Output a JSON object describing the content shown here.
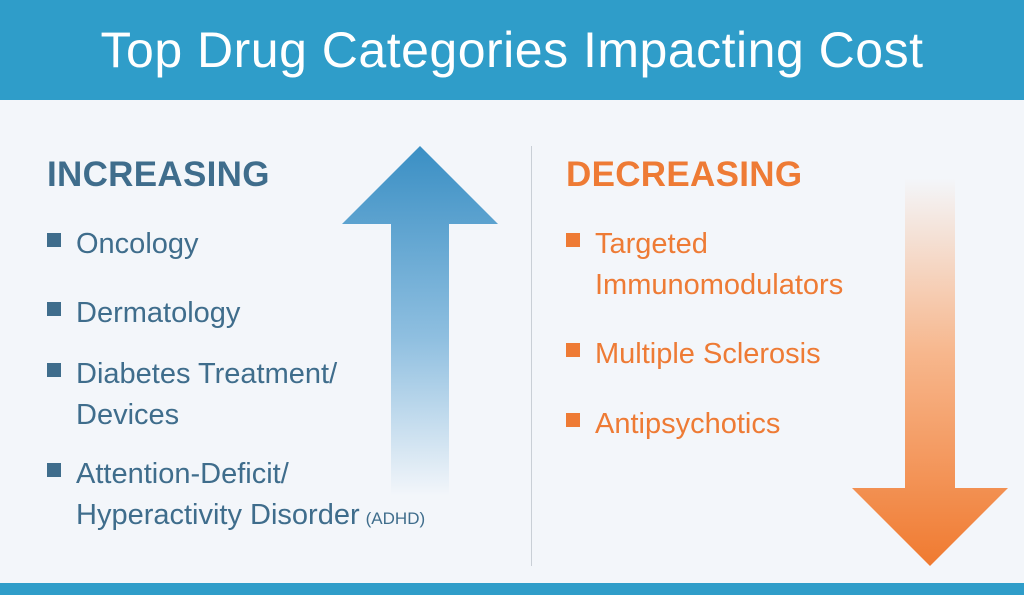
{
  "title": "Top Drug Categories Impacting Cost",
  "increasing": {
    "heading": "INCREASING",
    "items": [
      {
        "lines": [
          "Oncology"
        ]
      },
      {
        "lines": [
          "Dermatology"
        ]
      },
      {
        "lines": [
          "Diabetes Treatment/",
          "Devices"
        ]
      },
      {
        "lines": [
          "Attention-Deficit/",
          "Hyperactivity Disorder"
        ],
        "suffix": "(ADHD)"
      }
    ],
    "color": "#3f6d8c",
    "arrow_color": "#3a8fc4"
  },
  "decreasing": {
    "heading": "DECREASING",
    "items": [
      {
        "lines": [
          "Targeted",
          "Immunomodulators"
        ]
      },
      {
        "lines": [
          "Multiple Sclerosis"
        ]
      },
      {
        "lines": [
          "Antipsychotics"
        ]
      }
    ],
    "color": "#ee7b35",
    "arrow_color": "#f07a30"
  },
  "colors": {
    "header_bg": "#2f9dc9",
    "background": "#f3f6fa"
  }
}
